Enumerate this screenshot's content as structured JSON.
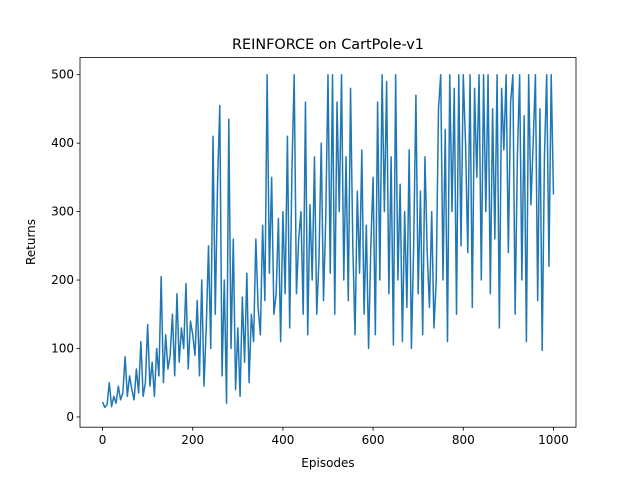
{
  "chart_data": {
    "type": "line",
    "title": "REINFORCE on CartPole-v1",
    "x_label": "Episodes",
    "y_label": "Returns",
    "x": [
      0,
      5,
      10,
      15,
      20,
      25,
      30,
      35,
      40,
      45,
      50,
      55,
      60,
      65,
      70,
      75,
      80,
      85,
      90,
      95,
      100,
      105,
      110,
      115,
      120,
      125,
      130,
      135,
      140,
      145,
      150,
      155,
      160,
      165,
      170,
      175,
      180,
      185,
      190,
      195,
      200,
      205,
      210,
      215,
      220,
      225,
      230,
      235,
      240,
      245,
      250,
      255,
      260,
      265,
      270,
      275,
      280,
      285,
      290,
      295,
      300,
      305,
      310,
      315,
      320,
      325,
      330,
      335,
      340,
      345,
      350,
      355,
      360,
      365,
      370,
      375,
      380,
      385,
      390,
      395,
      400,
      405,
      410,
      415,
      420,
      425,
      430,
      435,
      440,
      445,
      450,
      455,
      460,
      465,
      470,
      475,
      480,
      485,
      490,
      495,
      500,
      505,
      510,
      515,
      520,
      525,
      530,
      535,
      540,
      545,
      550,
      555,
      560,
      565,
      570,
      575,
      580,
      585,
      590,
      595,
      600,
      605,
      610,
      615,
      620,
      625,
      630,
      635,
      640,
      645,
      650,
      655,
      660,
      665,
      670,
      675,
      680,
      685,
      690,
      695,
      700,
      705,
      710,
      715,
      720,
      725,
      730,
      735,
      740,
      745,
      750,
      755,
      760,
      765,
      770,
      775,
      780,
      785,
      790,
      795,
      800,
      805,
      810,
      815,
      820,
      825,
      830,
      835,
      840,
      845,
      850,
      855,
      860,
      865,
      870,
      875,
      880,
      885,
      890,
      895,
      900,
      905,
      910,
      915,
      920,
      925,
      930,
      935,
      940,
      945,
      950,
      955,
      960,
      965,
      970,
      975,
      980,
      985,
      990,
      995,
      1000
    ],
    "series": [
      {
        "color": "#1f77b4",
        "values": [
          22,
          14,
          18,
          50,
          15,
          30,
          20,
          45,
          25,
          35,
          88,
          30,
          60,
          40,
          25,
          70,
          35,
          110,
          30,
          50,
          135,
          45,
          80,
          30,
          100,
          60,
          205,
          50,
          120,
          70,
          90,
          150,
          60,
          180,
          80,
          130,
          100,
          195,
          70,
          140,
          120,
          90,
          170,
          60,
          200,
          45,
          130,
          250,
          100,
          410,
          150,
          340,
          455,
          60,
          200,
          20,
          435,
          100,
          260,
          40,
          130,
          30,
          175,
          80,
          210,
          50,
          150,
          110,
          260,
          160,
          120,
          280,
          170,
          500,
          210,
          350,
          150,
          180,
          290,
          110,
          300,
          180,
          410,
          130,
          360,
          500,
          180,
          260,
          300,
          150,
          460,
          120,
          310,
          200,
          380,
          150,
          230,
          400,
          170,
          290,
          500,
          210,
          500,
          150,
          460,
          300,
          500,
          200,
          380,
          170,
          480,
          250,
          120,
          330,
          210,
          390,
          150,
          280,
          100,
          250,
          350,
          120,
          460,
          200,
          500,
          300,
          490,
          180,
          380,
          105,
          500,
          200,
          340,
          110,
          300,
          160,
          390,
          100,
          250,
          470,
          180,
          330,
          120,
          380,
          240,
          160,
          300,
          130,
          200,
          450,
          500,
          200,
          420,
          110,
          500,
          300,
          480,
          150,
          500,
          250,
          500,
          400,
          240,
          500,
          160,
          480,
          350,
          500,
          200,
          500,
          300,
          500,
          180,
          450,
          260,
          500,
          130,
          480,
          390,
          500,
          240,
          460,
          500,
          150,
          380,
          500,
          200,
          440,
          110,
          500,
          310,
          400,
          500,
          170,
          450,
          97,
          380,
          500,
          220,
          500,
          325
        ]
      }
    ],
    "xlim": [
      -50,
      1050
    ],
    "ylim": [
      -15,
      525
    ],
    "xticks": [
      0,
      200,
      400,
      600,
      800,
      1000
    ],
    "yticks": [
      0,
      100,
      200,
      300,
      400,
      500
    ]
  }
}
